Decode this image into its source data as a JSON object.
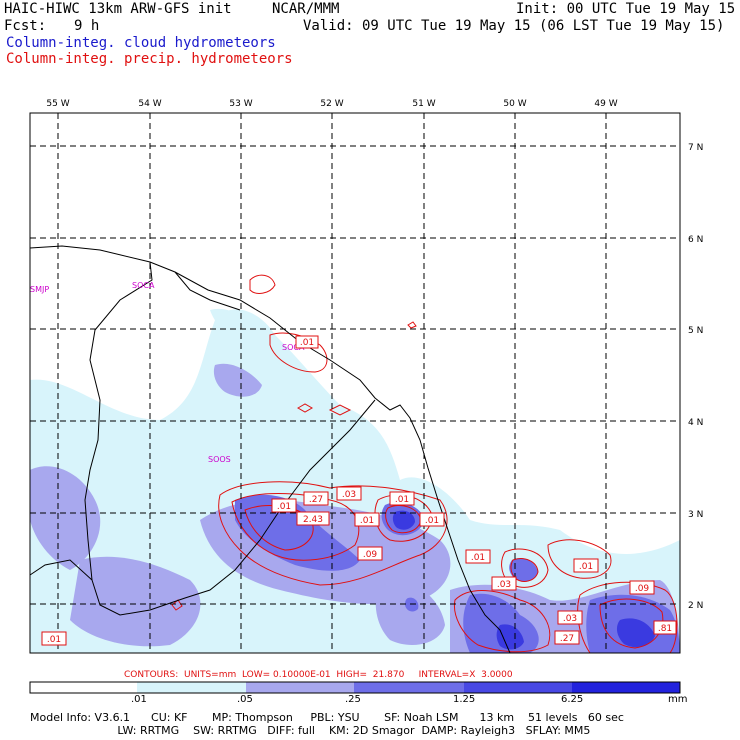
{
  "header": {
    "model_title": "HAIC-HIWC 13km ARW-GFS init",
    "center": "NCAR/MMM",
    "init_time": "Init: 00 UTC Tue 19 May 15",
    "forecast_label": "Fcst:",
    "forecast_hours": "9 h",
    "valid_time": "Valid: 09 UTC Tue 19 May 15 (06 LST Tue 19 May 15)",
    "field_cloud": "Column-integ. cloud hydrometeors",
    "field_precip": "Column-integ. precip. hydrometeors"
  },
  "map": {
    "lon_labels": [
      "55 W",
      "54 W",
      "53 W",
      "52 W",
      "51 W",
      "50 W",
      "49 W"
    ],
    "lat_labels": [
      "7 N",
      "6 N",
      "5 N",
      "4 N",
      "3 N",
      "2 N"
    ],
    "station_labels": [
      "SMJP",
      "SOCA",
      "SOOS",
      "SOCA"
    ],
    "contour_labels": [
      ".01",
      ".27",
      ".03",
      ".01",
      ".01",
      "2.43",
      ".01",
      ".01",
      ".09",
      ".01",
      ".03",
      ".01",
      ".09",
      ".03",
      ".27",
      ".81",
      ".01"
    ],
    "colors": {
      "cloud_shade_1": "#d8f4fb",
      "cloud_shade_2": "#a8a8ee",
      "cloud_shade_3": "#6e6ee8",
      "cloud_shade_4": "#3a3ae0",
      "contour": "#e01010",
      "station": "#cc00cc",
      "coast": "#000000"
    }
  },
  "contour_info": "CONTOURS:  UNITS=mm  LOW= 0.10000E-01  HIGH=  21.870     INTERVAL=X  3.0000",
  "colorbar": {
    "ticks": [
      ".01",
      ".05",
      ".25",
      "1.25",
      "6.25"
    ],
    "units": "mm",
    "colors": [
      "#ffffff",
      "#d8f4fb",
      "#b8dff4",
      "#a8a8ee",
      "#6e6ee8",
      "#4848e4",
      "#2222dd"
    ]
  },
  "model_info": {
    "line1": "Model Info: V3.6.1      CU: KF       MP: Thompson     PBL: YSU       SF: Noah LSM      13 km    51 levels   60 sec",
    "line2": "                         LW: RRTMG    SW: RRTMG   DIFF: full    KM: 2D Smagor  DAMP: Rayleigh3   SFLAY: MM5"
  }
}
